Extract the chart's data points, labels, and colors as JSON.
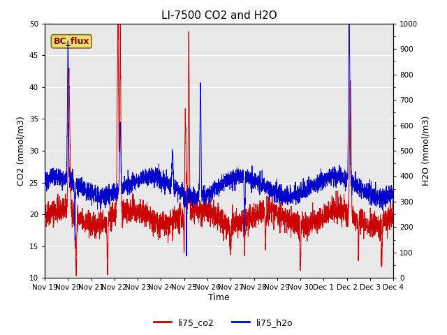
{
  "title": "LI-7500 CO2 and H2O",
  "ylabel_left": "CO2 (mmol/m3)",
  "ylabel_right": "H2O (mmol/m3)",
  "xlabel": "Time",
  "ylim_left": [
    10,
    50
  ],
  "ylim_right": [
    0,
    1000
  ],
  "yticks_left": [
    10,
    15,
    20,
    25,
    30,
    35,
    40,
    45,
    50
  ],
  "yticks_right": [
    0,
    100,
    200,
    300,
    400,
    500,
    600,
    700,
    800,
    900,
    1000
  ],
  "plot_bg_color": "#e8e8e8",
  "line_color_co2": "#cc0000",
  "line_color_h2o": "#0000cc",
  "legend_labels": [
    "li75_co2",
    "li75_h2o"
  ],
  "annotation_text": "BC_flux",
  "annotation_bg": "#e8e070",
  "annotation_border": "#8b6914",
  "x_tick_labels": [
    "Nov 19",
    "Nov 20",
    "Nov 21",
    "Nov 22",
    "Nov 23",
    "Nov 24",
    "Nov 25",
    "Nov 26",
    "Nov 27",
    "Nov 28",
    "Nov 29",
    "Nov 30",
    "Dec 1",
    "Dec 2",
    "Dec 3",
    "Dec 4"
  ],
  "title_fontsize": 11,
  "axis_fontsize": 9,
  "tick_fontsize": 7.5,
  "legend_fontsize": 9
}
